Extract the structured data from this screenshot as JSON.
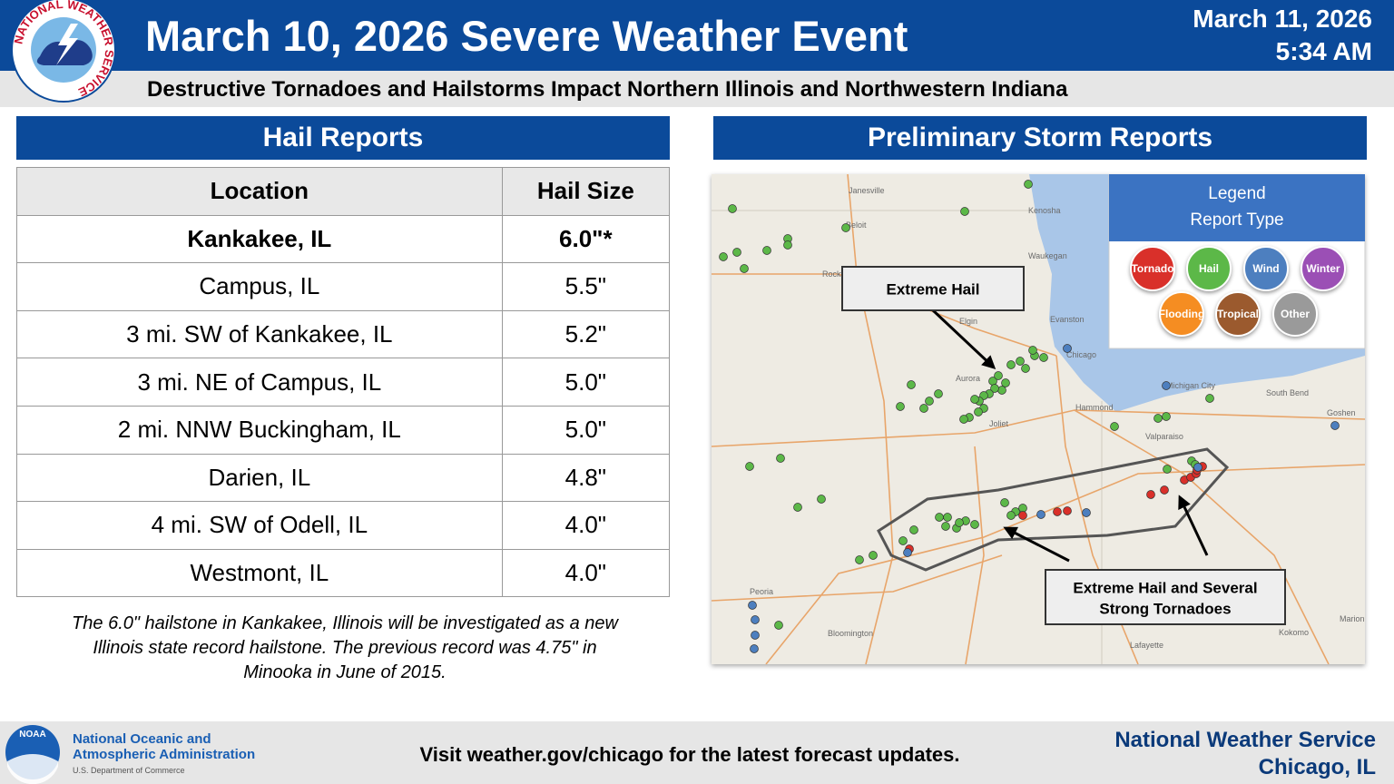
{
  "header": {
    "logo_text": "NATIONAL WEATHER SERVICE",
    "title": "March 10, 2026 Severe Weather Event",
    "date": "March 11, 2026",
    "time": "5:34 AM",
    "subtitle": "Destructive Tornadoes and Hailstorms Impact Northern Illinois and Northwestern Indiana"
  },
  "hail_reports": {
    "title": "Hail Reports",
    "table": {
      "columns": [
        "Location",
        "Hail Size"
      ],
      "rows": [
        [
          "Kankakee, IL",
          "6.0\"*"
        ],
        [
          "Campus, IL",
          "5.5\""
        ],
        [
          "3 mi. SW of Kankakee, IL",
          "5.2\""
        ],
        [
          "3 mi. NE of Campus, IL",
          "5.0\""
        ],
        [
          "2 mi. NNW Buckingham, IL",
          "5.0\""
        ],
        [
          "Darien, IL",
          "4.8\""
        ],
        [
          "4 mi. SW of Odell, IL",
          "4.0\""
        ],
        [
          "Westmont, IL",
          "4.0\""
        ]
      ]
    },
    "note": [
      "The 6.0\" hailstone in Kankakee, Illinois will be investigated as a new",
      "Illinois state record hailstone. The previous record was 4.75\" in",
      "Minooka in June of 2015."
    ]
  },
  "storm_reports": {
    "title": "Preliminary Storm Reports",
    "map": {
      "places": [
        "Janesville",
        "Beloit",
        "Rockford",
        "Kenosha",
        "Waukegan",
        "Elgin",
        "Evanston",
        "Chicago",
        "Aurora",
        "Joliet",
        "Hammond",
        "Valparaiso",
        "Michigan City",
        "South Bend",
        "Goshen",
        "Peoria",
        "Bloomington",
        "Kokomo",
        "Lafayette",
        "Marion"
      ],
      "legend": {
        "title": "Legend",
        "subtitle": "Report Type",
        "items": [
          {
            "name": "Tornado",
            "color": "#d9302a"
          },
          {
            "name": "Hail",
            "color": "#5cb848"
          },
          {
            "name": "Wind",
            "color": "#4d7fbf"
          },
          {
            "name": "Winter",
            "color": "#9b4fb5"
          },
          {
            "name": "Flooding",
            "color": "#f58d22"
          },
          {
            "name": "Tropical",
            "color": "#9b5a2e"
          },
          {
            "name": "Other",
            "color": "#9a9a9a"
          }
        ]
      },
      "callouts": [
        [
          "Extreme Hail"
        ],
        [
          "Extreme Hail and Several",
          "Strong Tornadoes"
        ]
      ]
    }
  },
  "footer": {
    "noaa_logo": "NOAA",
    "agency": [
      "National Oceanic and",
      "Atmospheric Administration"
    ],
    "department": "U.S. Department of Commerce",
    "message": "Visit weather.gov/chicago for the latest forecast updates.",
    "office": [
      "National Weather Service",
      "Chicago, IL"
    ]
  }
}
